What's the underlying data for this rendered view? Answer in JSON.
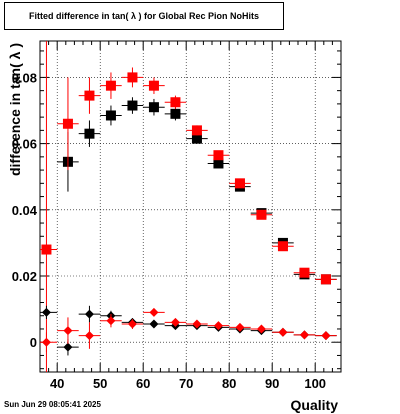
{
  "title": "Fitted difference in tan( λ ) for Global Rec Pion NoHits",
  "footer": "Sun Jun 29 08:05:41 2025",
  "chart_data": {
    "type": "scatter",
    "title": "Fitted difference in tan( λ ) for Global Rec Pion NoHits",
    "xlabel": "Quality",
    "ylabel": "difference in tan( λ )",
    "xlim": [
      36,
      106
    ],
    "ylim": [
      -0.009,
      0.091
    ],
    "xticks": [
      40,
      50,
      60,
      70,
      80,
      90,
      100
    ],
    "yticks": [
      0,
      0.02,
      0.04,
      0.06,
      0.08
    ],
    "xtick_labels": [
      "40",
      "50",
      "60",
      "70",
      "80",
      "90",
      "100"
    ],
    "ytick_labels": [
      "0",
      "0.02",
      "0.04",
      "0.06",
      "0.08"
    ],
    "grid": true,
    "series": [
      {
        "marker": "square",
        "color": "#000000",
        "x": [
          42.5,
          47.5,
          52.5,
          57.5,
          62.5,
          67.5,
          72.5,
          77.5,
          82.5,
          87.5,
          92.5,
          97.5,
          102.5
        ],
        "y": [
          0.0545,
          0.063,
          0.0685,
          0.0715,
          0.071,
          0.069,
          0.0615,
          0.054,
          0.047,
          0.039,
          0.03,
          0.0205,
          0.019
        ],
        "err": [
          0.009,
          0.004,
          0.003,
          0.0025,
          0.0025,
          0.002,
          0.0015,
          0.0012,
          0.001,
          0.001,
          0.001,
          0.0008,
          0.0008
        ]
      },
      {
        "marker": "square",
        "color": "#ff0000",
        "x": [
          37.5,
          42.5,
          47.5,
          52.5,
          57.5,
          62.5,
          67.5,
          72.5,
          77.5,
          82.5,
          87.5,
          92.5,
          97.5,
          102.5
        ],
        "y": [
          0.028,
          0.066,
          0.0745,
          0.0775,
          0.08,
          0.0775,
          0.0725,
          0.064,
          0.0565,
          0.048,
          0.0385,
          0.029,
          0.021,
          0.019
        ],
        "err": [
          0.095,
          0.014,
          0.0055,
          0.004,
          0.003,
          0.0025,
          0.002,
          0.0015,
          0.0012,
          0.001,
          0.001,
          0.001,
          0.0008,
          0.0008
        ]
      },
      {
        "marker": "diamond",
        "color": "#000000",
        "x": [
          37.5,
          42.5,
          47.5,
          52.5,
          57.5,
          62.5,
          67.5,
          72.5,
          77.5,
          82.5,
          87.5,
          92.5,
          97.5,
          102.5
        ],
        "y": [
          0.009,
          -0.0015,
          0.0085,
          0.008,
          0.006,
          0.0055,
          0.005,
          0.005,
          0.0045,
          0.004,
          0.0035,
          0.003,
          0.0022,
          0.002
        ],
        "err": [
          0.002,
          0.0025,
          0.0025,
          0.0015,
          0.0012,
          0.001,
          0.0008,
          0.0006,
          0.0005,
          0.0005,
          0.0005,
          0.0004,
          0.0004,
          0.0004
        ]
      },
      {
        "marker": "diamond",
        "color": "#ff0000",
        "x": [
          37.5,
          42.5,
          47.5,
          52.5,
          57.5,
          62.5,
          67.5,
          72.5,
          77.5,
          82.5,
          87.5,
          92.5,
          97.5,
          102.5
        ],
        "y": [
          0.0,
          0.0035,
          0.002,
          0.0065,
          0.0055,
          0.009,
          0.006,
          0.0055,
          0.005,
          0.0045,
          0.004,
          0.003,
          0.0022,
          0.002
        ],
        "err": [
          0.003,
          0.004,
          0.004,
          0.002,
          0.0015,
          0.0012,
          0.001,
          0.0008,
          0.0006,
          0.0005,
          0.0005,
          0.0004,
          0.0004,
          0.0004
        ]
      }
    ]
  }
}
